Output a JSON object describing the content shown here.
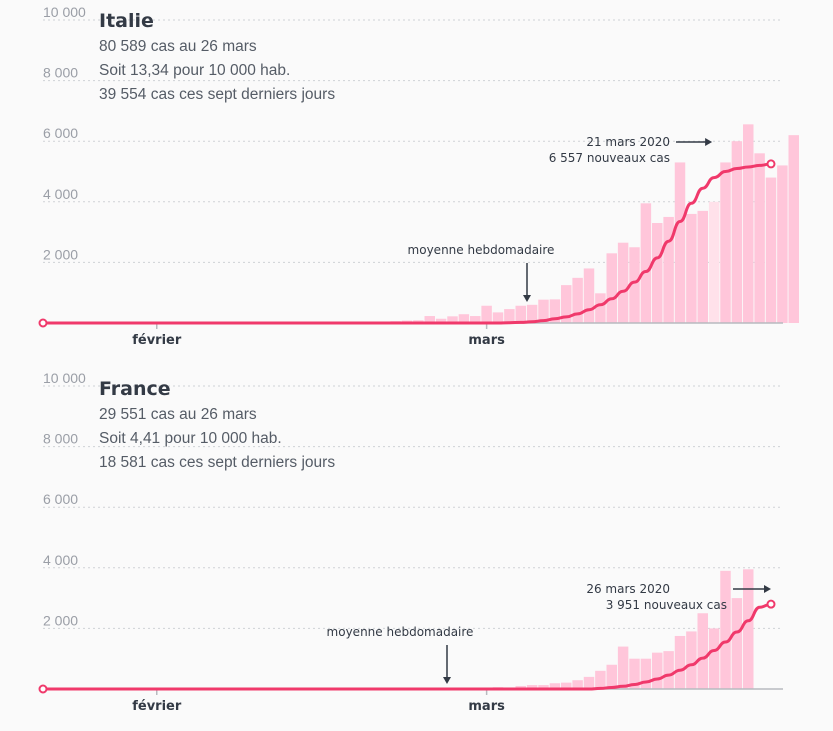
{
  "colors": {
    "bar": "#ffc6da",
    "bar_highlight": "#ffe1ea",
    "line": "#f0396b",
    "grid": "#cfd2d6",
    "axis": "#b7babf",
    "text": "#333a45"
  },
  "chart_data": [
    {
      "type": "bar",
      "title": "Italie",
      "info_lines": [
        "80 589 cas au 26 mars",
        "Soit 13,34 pour 10 000 hab.",
        "39 554 cas ces sept derniers jours"
      ],
      "x_labels": [
        "février",
        "mars"
      ],
      "yticks": [
        2000,
        4000,
        6000,
        8000,
        10000
      ],
      "ytick_labels": [
        "2 000",
        "4 000",
        "6 000",
        "8 000",
        "10 000"
      ],
      "ylim": [
        0,
        10000
      ],
      "x_start": "2020-01-22",
      "x_end": "2020-03-26",
      "grid": true,
      "bars_start": "2020-02-21",
      "values": [
        20,
        60,
        80,
        90,
        230,
        140,
        220,
        290,
        230,
        570,
        350,
        460,
        570,
        600,
        770,
        780,
        1250,
        1490,
        1800,
        980,
        2300,
        2650,
        2500,
        3950,
        3300,
        3500,
        5300,
        3600,
        3700,
        4000,
        5300,
        6000,
        6557,
        5600,
        4800,
        5200,
        6200
      ],
      "moving_average": [
        0,
        10,
        20,
        40,
        80,
        140,
        200,
        300,
        440,
        600,
        800,
        1050,
        1350,
        1700,
        2150,
        2700,
        3350,
        3950,
        4450,
        4800,
        5000,
        5100,
        5150,
        5200,
        5250
      ],
      "annotation_peak": {
        "date": "2020-03-21",
        "lines": [
          "21 mars 2020",
          "6 557 nouveaux cas"
        ]
      },
      "annotation_avg": "moyenne hebdomadaire"
    },
    {
      "type": "bar",
      "title": "France",
      "info_lines": [
        "29 551 cas au 26 mars",
        "Soit 4,41 pour 10 000 hab.",
        "18 581 cas ces sept derniers jours"
      ],
      "x_labels": [
        "février",
        "mars"
      ],
      "yticks": [
        2000,
        4000,
        6000,
        8000,
        10000
      ],
      "ytick_labels": [
        "2 000",
        "4 000",
        "6 000",
        "8 000",
        "10 000"
      ],
      "ylim": [
        0,
        10000
      ],
      "x_start": "2020-01-22",
      "x_end": "2020-03-26",
      "grid": true,
      "bars_start": "2020-02-28",
      "values": [
        20,
        20,
        40,
        60,
        50,
        100,
        130,
        130,
        190,
        210,
        290,
        400,
        600,
        800,
        1400,
        1000,
        1000,
        1200,
        1250,
        1750,
        1900,
        2500,
        2000,
        3900,
        3000,
        3951
      ],
      "moving_average": [
        0,
        20,
        50,
        90,
        150,
        230,
        330,
        460,
        620,
        800,
        1020,
        1270,
        1550,
        1880,
        2250,
        2700,
        2800
      ],
      "annotation_peak": {
        "date": "2020-03-26",
        "lines": [
          "26 mars 2020",
          "3 951 nouveaux cas"
        ]
      },
      "annotation_avg": "moyenne hebdomadaire"
    }
  ]
}
